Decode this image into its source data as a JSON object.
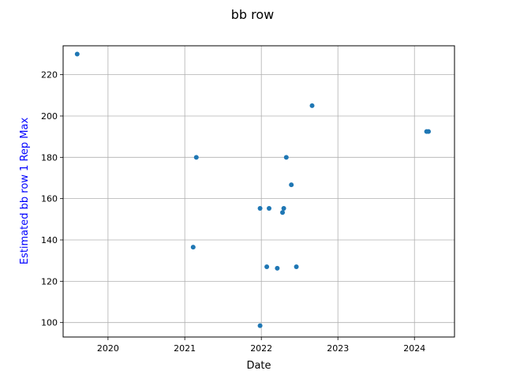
{
  "chart_data": {
    "type": "scatter",
    "title": "bb row",
    "xlabel": "Date",
    "ylabel": "Estimated bb row 1 Rep Max",
    "ylabel_color": "#0000ff",
    "marker_color": "#1f77b4",
    "grid": true,
    "x_axis_type": "date",
    "xlim": [
      "2019-06-01",
      "2024-07-10"
    ],
    "ylim": [
      93,
      234
    ],
    "x_ticks": [
      "2020-01-01",
      "2021-01-01",
      "2022-01-01",
      "2023-01-01",
      "2024-01-01"
    ],
    "x_tick_labels": [
      "2020",
      "2021",
      "2022",
      "2023",
      "2024"
    ],
    "y_ticks": [
      100,
      120,
      140,
      160,
      180,
      200,
      220
    ],
    "y_tick_labels": [
      "100",
      "120",
      "140",
      "160",
      "180",
      "200",
      "220"
    ],
    "points": [
      {
        "x": "2019-08-07",
        "y": 230
      },
      {
        "x": "2021-02-10",
        "y": 136.5
      },
      {
        "x": "2021-02-25",
        "y": 180
      },
      {
        "x": "2021-12-26",
        "y": 98.5
      },
      {
        "x": "2021-12-26",
        "y": 155.3
      },
      {
        "x": "2022-01-27",
        "y": 127
      },
      {
        "x": "2022-02-07",
        "y": 155.3
      },
      {
        "x": "2022-03-18",
        "y": 126.3
      },
      {
        "x": "2022-04-12",
        "y": 153.3
      },
      {
        "x": "2022-04-18",
        "y": 155.3
      },
      {
        "x": "2022-04-30",
        "y": 180
      },
      {
        "x": "2022-05-24",
        "y": 166.7
      },
      {
        "x": "2022-06-17",
        "y": 127
      },
      {
        "x": "2022-08-31",
        "y": 205
      },
      {
        "x": "2024-02-28",
        "y": 192.5
      },
      {
        "x": "2024-03-08",
        "y": 192.5
      }
    ]
  }
}
